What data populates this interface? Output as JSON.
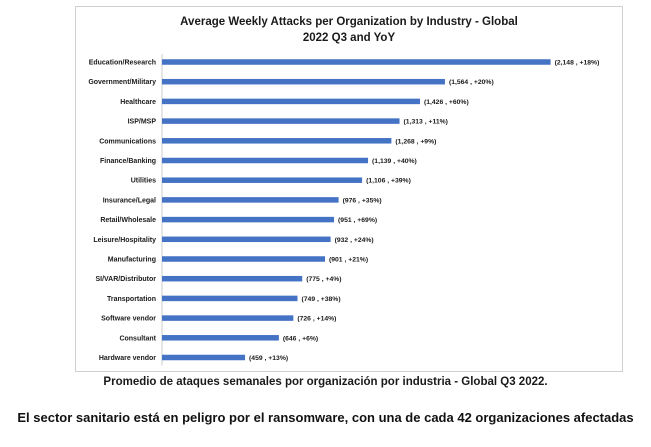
{
  "chart_data": {
    "type": "bar",
    "orientation": "horizontal",
    "title_lines": [
      "Average Weekly Attacks per Organization by Industry - Global",
      "2022 Q3 and YoY"
    ],
    "categories": [
      "Education/Research",
      "Government/Military",
      "Healthcare",
      "ISP/MSP",
      "Communications",
      "Finance/Banking",
      "Utilities",
      "Insurance/Legal",
      "Retail/Wholesale",
      "Leisure/Hospitality",
      "Manufacturing",
      "SI/VAR/Distributor",
      "Transportation",
      "Software vendor",
      "Consultant",
      "Hardware vendor"
    ],
    "values": [
      2148,
      1564,
      1426,
      1313,
      1268,
      1139,
      1106,
      976,
      951,
      932,
      901,
      775,
      749,
      726,
      646,
      459
    ],
    "data_labels": [
      "(2,148 , +18%)",
      "(1,564 , +20%)",
      "(1,426 , +60%)",
      "(1,313 , +11%)",
      "(1,268 , +9%)",
      "(1,139 , +40%)",
      "(1,106 , +39%)",
      "(976 , +35%)",
      "(951 , +69%)",
      "(932 , +24%)",
      "(901 , +21%)",
      "(775 , +4%)",
      "(749 , +38%)",
      "(726 , +14%)",
      "(646 , +6%)",
      "(459 , +13%)"
    ],
    "xlim": [
      0,
      2200
    ],
    "bar_color": "#4472c4",
    "grid": false,
    "legend": "none"
  },
  "caption": "Promedio de ataques semanales por organización por industria - Global Q3 2022.",
  "headline": "El sector sanitario está en peligro por el ransomware, con una de cada 42 organizaciones afectadas"
}
